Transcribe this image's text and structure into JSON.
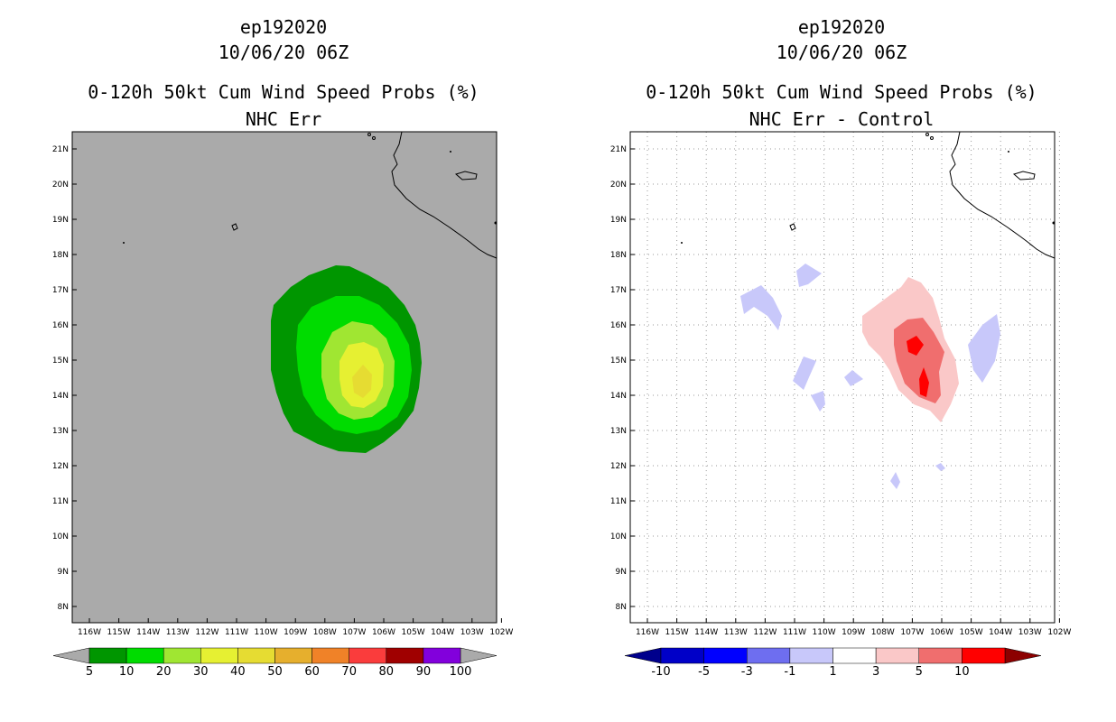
{
  "left_panel": {
    "title_line1": "ep192020",
    "title_line2": "10/06/20 06Z",
    "title_line3": "0-120h 50kt Cum Wind Speed Probs (%)",
    "title_line4": "NHC Err",
    "lat_labels": [
      "21N",
      "20N",
      "19N",
      "18N",
      "17N",
      "16N",
      "15N",
      "14N",
      "13N",
      "12N",
      "11N",
      "10N",
      "9N",
      "8N"
    ],
    "lon_labels": [
      "116W",
      "115W",
      "114W",
      "113W",
      "112W",
      "111W",
      "110W",
      "109W",
      "108W",
      "107W",
      "106W",
      "105W",
      "104W",
      "103W",
      "102W"
    ],
    "colorbar": {
      "labels": [
        "5",
        "10",
        "20",
        "30",
        "40",
        "50",
        "60",
        "70",
        "80",
        "90",
        "100"
      ],
      "colors": [
        "#009600",
        "#00dc00",
        "#a0e632",
        "#e6f032",
        "#e6dc32",
        "#e6af2d",
        "#f08228",
        "#fa3c3c",
        "#a00000",
        "#8200dc"
      ],
      "under_color": "#aaaaaa",
      "over_color": "#aaaaaa"
    },
    "background_color": "#aaaaaa"
  },
  "right_panel": {
    "title_line1": "ep192020",
    "title_line2": "10/06/20 06Z",
    "title_line3": "0-120h 50kt Cum Wind Speed Probs (%)",
    "title_line4": "NHC Err - Control",
    "lat_labels": [
      "21N",
      "20N",
      "19N",
      "18N",
      "17N",
      "16N",
      "15N",
      "14N",
      "13N",
      "12N",
      "11N",
      "10N",
      "9N",
      "8N"
    ],
    "lon_labels": [
      "116W",
      "115W",
      "114W",
      "113W",
      "112W",
      "111W",
      "110W",
      "109W",
      "108W",
      "107W",
      "106W",
      "105W",
      "104W",
      "103W",
      "102W"
    ],
    "colorbar": {
      "labels": [
        "-10",
        "-5",
        "-3",
        "-1",
        "1",
        "3",
        "5",
        "10"
      ],
      "colors": [
        "#0000c8",
        "#0000ff",
        "#6e6ef0",
        "#c8c8fa",
        "#ffffff",
        "#fac8c8",
        "#f06e6e",
        "#ff0000"
      ],
      "under_color": "#00008c",
      "over_color": "#8c0000"
    },
    "background_color": "#ffffff"
  }
}
